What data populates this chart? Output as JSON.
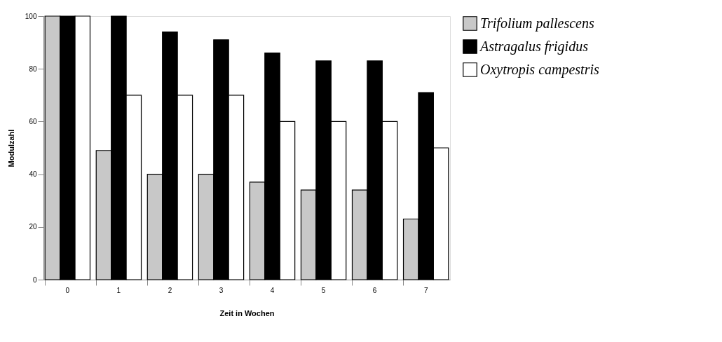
{
  "chart_data": {
    "type": "bar",
    "xlabel": "Zeit in Wochen",
    "ylabel": "Modulzahl",
    "categories": [
      "0",
      "1",
      "2",
      "3",
      "4",
      "5",
      "6",
      "7"
    ],
    "series": [
      {
        "name": "Trifolium pallescens",
        "color": "#c8c8c8",
        "values": [
          100,
          49,
          40,
          40,
          37,
          34,
          34,
          23
        ]
      },
      {
        "name": "Astragalus frigidus",
        "color": "#000000",
        "values": [
          100,
          100,
          94,
          91,
          86,
          83,
          83,
          71
        ]
      },
      {
        "name": "Oxytropis campestris",
        "color": "#ffffff",
        "values": [
          100,
          70,
          70,
          70,
          60,
          60,
          60,
          50
        ]
      }
    ],
    "ylim": [
      0,
      100
    ],
    "yticks": [
      0,
      20,
      40,
      60,
      80,
      100
    ],
    "grid": false,
    "legend": "right"
  }
}
